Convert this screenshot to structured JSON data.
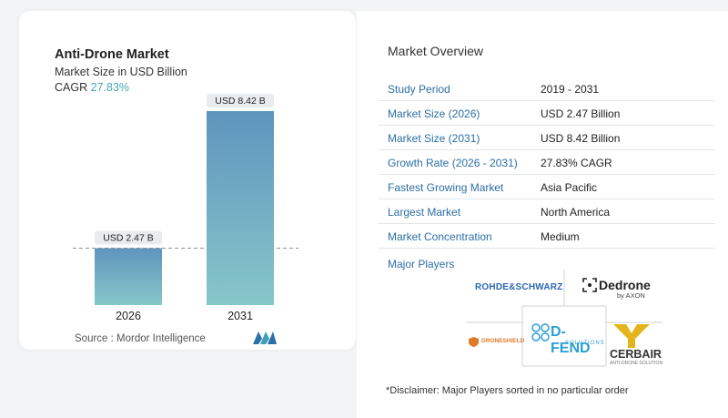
{
  "left_card": {
    "title": "Anti-Drone Market",
    "subtitle": "Market Size in USD Billion",
    "cagr_label": "CAGR",
    "cagr_value": "27.83%",
    "source": "Source :  Mordor Intelligence",
    "logo_icon": "mordor-intelligence-logo-icon"
  },
  "chart_data": {
    "type": "bar",
    "categories": [
      "2026",
      "2031"
    ],
    "values": [
      2.47,
      8.42
    ],
    "data_labels": [
      "USD 2.47 B",
      "USD 8.42 B"
    ],
    "title": "Anti-Drone Market",
    "subtitle": "Market Size in USD Billion",
    "xlabel": "",
    "ylabel": "",
    "ylim": [
      0,
      8.42
    ],
    "grid": false,
    "reference_line": "dashed at 2026 value",
    "colors": {
      "bar_top": "#5e95be",
      "bar_bottom": "#86c7c9",
      "label_bg": "#e9ecef"
    }
  },
  "overview": {
    "title": "Market Overview",
    "rows": [
      {
        "key": "Study Period",
        "value": "2019 - 2031"
      },
      {
        "key": "Market Size (2026)",
        "value": "USD 2.47 Billion"
      },
      {
        "key": "Market Size (2031)",
        "value": "USD 8.42 Billion"
      },
      {
        "key": "Growth Rate (2026 - 2031)",
        "value": "27.83% CAGR"
      },
      {
        "key": "Fastest Growing Market",
        "value": "Asia Pacific"
      },
      {
        "key": "Largest Market",
        "value": "North America"
      },
      {
        "key": "Market Concentration",
        "value": "Medium"
      }
    ],
    "players_title": "Major Players",
    "players": {
      "rohde_schwarz": "ROHDE&SCHWARZ",
      "dedrone": "Dedrone",
      "dedrone_sub": "by AXON",
      "droneshield": "DRONESHIELD",
      "dfend": "D-FEND",
      "dfend_sub": "SOLUTIONS",
      "cerbair": "CERBAIR",
      "cerbair_sub": "ANTI-DRONE SOLUTION"
    },
    "disclaimer": "*Disclaimer: Major Players sorted in no particular order"
  }
}
